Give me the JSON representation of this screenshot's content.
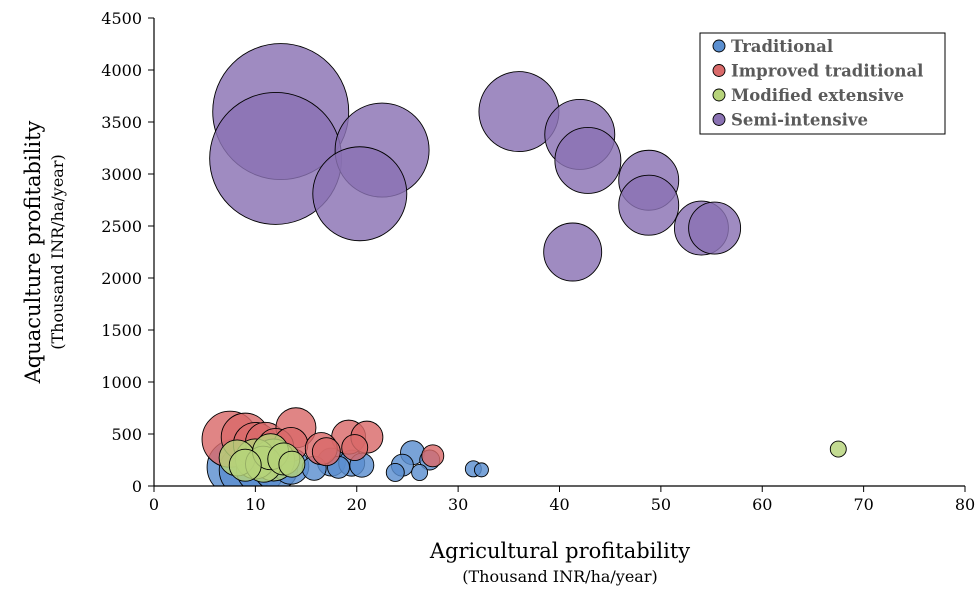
{
  "chart_data": {
    "type": "scatter",
    "xlabel": "Agricultural profitability",
    "xlabel_sub": "(Thousand INR/ha/year)",
    "ylabel": "Aquaculture profitability",
    "ylabel_sub": "(Thousand INR/ha/year)",
    "xlim": [
      0,
      80
    ],
    "ylim": [
      0,
      4500
    ],
    "xticks": [
      "0",
      "10",
      "20",
      "30",
      "40",
      "50",
      "60",
      "70",
      "80"
    ],
    "yticks": [
      "0",
      "500",
      "1000",
      "1500",
      "2000",
      "2500",
      "3000",
      "3500",
      "4000",
      "4500"
    ],
    "grid": false,
    "legend_position": "top-right",
    "series": [
      {
        "name": "Traditional",
        "color": "#5b8fd0",
        "points": [
          {
            "x": 8.0,
            "y": 180,
            "size": 28
          },
          {
            "x": 9.0,
            "y": 150,
            "size": 26
          },
          {
            "x": 10.5,
            "y": 160,
            "size": 24
          },
          {
            "x": 12.0,
            "y": 170,
            "size": 22
          },
          {
            "x": 13.5,
            "y": 190,
            "size": 18
          },
          {
            "x": 15.8,
            "y": 170,
            "size": 12
          },
          {
            "x": 17.5,
            "y": 230,
            "size": 14
          },
          {
            "x": 18.2,
            "y": 180,
            "size": 11
          },
          {
            "x": 19.5,
            "y": 220,
            "size": 13
          },
          {
            "x": 20.5,
            "y": 200,
            "size": 12
          },
          {
            "x": 23.8,
            "y": 130,
            "size": 9
          },
          {
            "x": 24.5,
            "y": 200,
            "size": 11
          },
          {
            "x": 25.5,
            "y": 320,
            "size": 12
          },
          {
            "x": 26.2,
            "y": 130,
            "size": 8
          },
          {
            "x": 27.2,
            "y": 250,
            "size": 10
          },
          {
            "x": 31.5,
            "y": 165,
            "size": 8
          },
          {
            "x": 32.3,
            "y": 155,
            "size": 7
          }
        ]
      },
      {
        "name": "Improved traditional",
        "color": "#d96a6a",
        "points": [
          {
            "x": 7.5,
            "y": 450,
            "size": 28
          },
          {
            "x": 9.0,
            "y": 470,
            "size": 24
          },
          {
            "x": 10.0,
            "y": 400,
            "size": 22
          },
          {
            "x": 11.0,
            "y": 420,
            "size": 20
          },
          {
            "x": 12.0,
            "y": 380,
            "size": 18
          },
          {
            "x": 13.5,
            "y": 400,
            "size": 17
          },
          {
            "x": 14.0,
            "y": 560,
            "size": 20
          },
          {
            "x": 16.5,
            "y": 360,
            "size": 16
          },
          {
            "x": 17.0,
            "y": 330,
            "size": 14
          },
          {
            "x": 19.2,
            "y": 470,
            "size": 17
          },
          {
            "x": 19.8,
            "y": 370,
            "size": 13
          },
          {
            "x": 21.0,
            "y": 470,
            "size": 16
          },
          {
            "x": 27.5,
            "y": 290,
            "size": 11
          }
        ]
      },
      {
        "name": "Modified extensive",
        "color": "#b6d37a",
        "points": [
          {
            "x": 8.2,
            "y": 270,
            "size": 18
          },
          {
            "x": 9.0,
            "y": 200,
            "size": 16
          },
          {
            "x": 10.0,
            "y": 260,
            "size": 20
          },
          {
            "x": 10.8,
            "y": 210,
            "size": 18
          },
          {
            "x": 11.5,
            "y": 330,
            "size": 18
          },
          {
            "x": 11.8,
            "y": 250,
            "size": 21
          },
          {
            "x": 12.8,
            "y": 260,
            "size": 16
          },
          {
            "x": 13.6,
            "y": 210,
            "size": 13
          },
          {
            "x": 67.5,
            "y": 355,
            "size": 8
          }
        ]
      },
      {
        "name": "Semi-intensive",
        "color": "#8a72b3",
        "points": [
          {
            "x": 12.5,
            "y": 3600,
            "size": 68
          },
          {
            "x": 12.0,
            "y": 3150,
            "size": 66
          },
          {
            "x": 22.5,
            "y": 3230,
            "size": 47
          },
          {
            "x": 20.3,
            "y": 2810,
            "size": 47
          },
          {
            "x": 36.0,
            "y": 3600,
            "size": 40
          },
          {
            "x": 42.0,
            "y": 3380,
            "size": 35
          },
          {
            "x": 42.8,
            "y": 3130,
            "size": 33
          },
          {
            "x": 48.8,
            "y": 2940,
            "size": 30
          },
          {
            "x": 48.8,
            "y": 2700,
            "size": 30
          },
          {
            "x": 54.0,
            "y": 2480,
            "size": 27
          },
          {
            "x": 55.3,
            "y": 2480,
            "size": 26
          },
          {
            "x": 41.3,
            "y": 2250,
            "size": 29
          }
        ]
      }
    ]
  }
}
